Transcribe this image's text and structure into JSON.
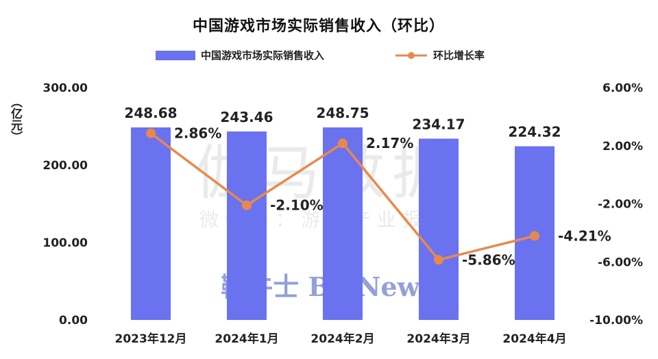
{
  "chart_data": {
    "type": "bar",
    "title": "中国游戏市场实际销售收入（环比）",
    "y_unit": "（亿元）",
    "categories": [
      "2023年12月",
      "2024年1月",
      "2024年2月",
      "2024年3月",
      "2024年4月"
    ],
    "series": [
      {
        "name": "中国游戏市场实际销售收入",
        "type": "bar",
        "axis": "left",
        "color": "#6b72f0",
        "values": [
          248.68,
          243.46,
          248.75,
          234.17,
          224.32
        ],
        "labels": [
          "248.68",
          "243.46",
          "248.75",
          "234.17",
          "224.32"
        ]
      },
      {
        "name": "环比增长率",
        "type": "line",
        "axis": "right",
        "color": "#e8894b",
        "values": [
          2.86,
          -2.1,
          2.17,
          -5.86,
          -4.21
        ],
        "labels": [
          "2.86%",
          "-2.10%",
          "2.17%",
          "-5.86%",
          "-4.21%"
        ]
      }
    ],
    "y_left": {
      "range": [
        0,
        300
      ],
      "ticks": [
        "0.00",
        "100.00",
        "200.00",
        "300.00"
      ],
      "tick_values": [
        0,
        100,
        200,
        300
      ]
    },
    "y_right": {
      "range": [
        -10,
        6
      ],
      "ticks": [
        "-10.00%",
        "-6.00%",
        "-2.00%",
        "2.00%",
        "6.00%"
      ],
      "tick_values": [
        -10,
        -6,
        -2,
        2,
        6
      ]
    },
    "legend_position": "top-center",
    "grid": false
  },
  "watermarks": {
    "main": "伽马数据",
    "sub": "微信号：游戏产业报告",
    "brand": "鞭牛士 BiaNews"
  }
}
